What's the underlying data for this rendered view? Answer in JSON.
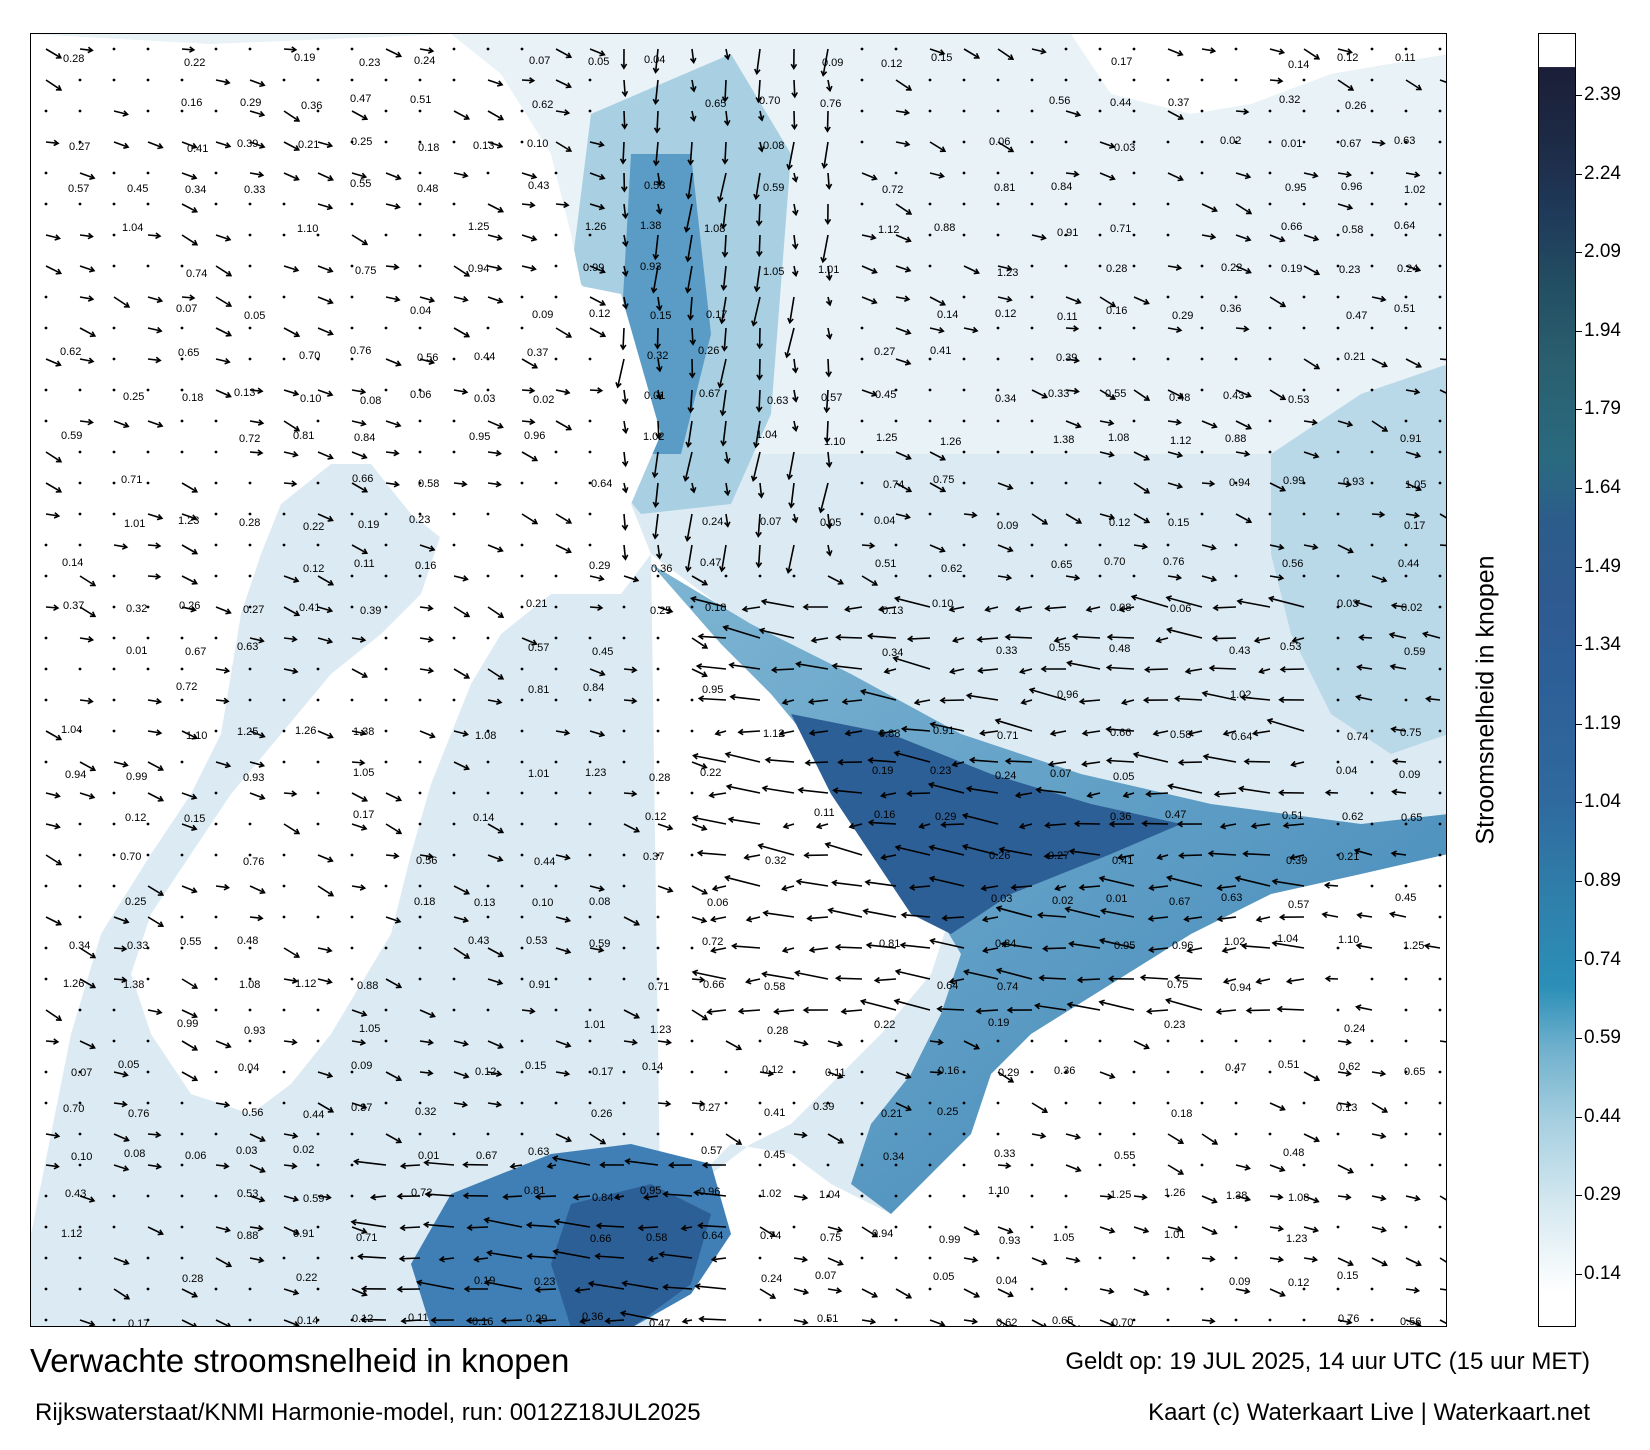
{
  "map": {
    "title": "Verwachte stroomsnelheid in knopen",
    "model_line": "Rijkswaterstaat/KNMI Harmonie-model, run: 0012Z18JUL2025",
    "valid_line": "Geldt op: 19 JUL 2025, 14 uur UTC (15 uur MET)",
    "credit_line": "Kaart (c) Waterkaart Live | Waterkaart.net",
    "colorbar": {
      "title": "Stroomsnelheid in knopen",
      "ticks": [
        "2.39",
        "2.24",
        "2.09",
        "1.94",
        "1.79",
        "1.64",
        "1.49",
        "1.34",
        "1.19",
        "1.04",
        "0.89",
        "0.74",
        "0.59",
        "0.44",
        "0.29",
        "0.14"
      ],
      "colors_bottom_to_top": [
        "#ffffff",
        "#d6e9f1",
        "#a6cfe0",
        "#6fb0cd",
        "#3f95bb",
        "#2b87b1",
        "#2f78a8",
        "#2f6a9e",
        "#2d5f97",
        "#2e5b92",
        "#2c5d8a",
        "#2a6a84",
        "#2a5f6f",
        "#234f63",
        "#1f3a5a",
        "#1d2a45",
        "#1b1e38"
      ]
    },
    "colors": {
      "water_light": "#e9f3f8",
      "water_mid": "#9bc6dc",
      "water_strong": "#4a8fbe",
      "water_fast": "#2d5f97",
      "land": "#ffffff",
      "arrow": "#000000"
    },
    "speed_labels": [
      "0.28",
      "0.22",
      "0.19",
      "0.23",
      "0.24",
      "0.07",
      "0.05",
      "0.04",
      "0.09",
      "0.12",
      "0.15",
      "0.17",
      "0.14",
      "0.12",
      "0.11",
      "0.16",
      "0.29",
      "0.36",
      "0.47",
      "0.51",
      "0.62",
      "0.65",
      "0.70",
      "0.76",
      "0.56",
      "0.44",
      "0.37",
      "0.32",
      "0.26",
      "0.27",
      "0.41",
      "0.39",
      "0.21",
      "0.25",
      "0.18",
      "0.13",
      "0.10",
      "0.08",
      "0.06",
      "0.03",
      "0.02",
      "0.01",
      "0.67",
      "0.63",
      "0.57",
      "0.45",
      "0.34",
      "0.33",
      "0.55",
      "0.48",
      "0.43",
      "0.53",
      "0.59",
      "0.72",
      "0.81",
      "0.84",
      "0.95",
      "0.96",
      "1.02",
      "1.04",
      "1.10",
      "1.25",
      "1.26",
      "1.38",
      "1.08",
      "1.12",
      "0.88",
      "0.91",
      "0.71",
      "0.66",
      "0.58",
      "0.64",
      "0.74",
      "0.75",
      "0.94",
      "0.99",
      "0.93",
      "1.05",
      "1.01",
      "1.23"
    ]
  }
}
